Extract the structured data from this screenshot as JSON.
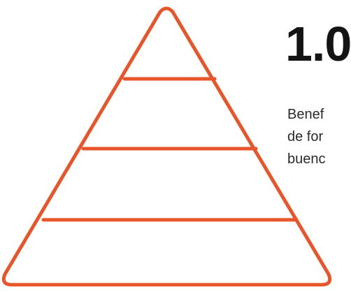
{
  "colors": {
    "pyramid_stroke": "#E8552B",
    "heading": "#141414",
    "body_text": "#2a2a2a",
    "background": "#ffffff"
  },
  "pyramid": {
    "levels": 4
  },
  "heading": "1.0",
  "body_lines": [
    "Benef",
    "de for",
    "buenc"
  ]
}
